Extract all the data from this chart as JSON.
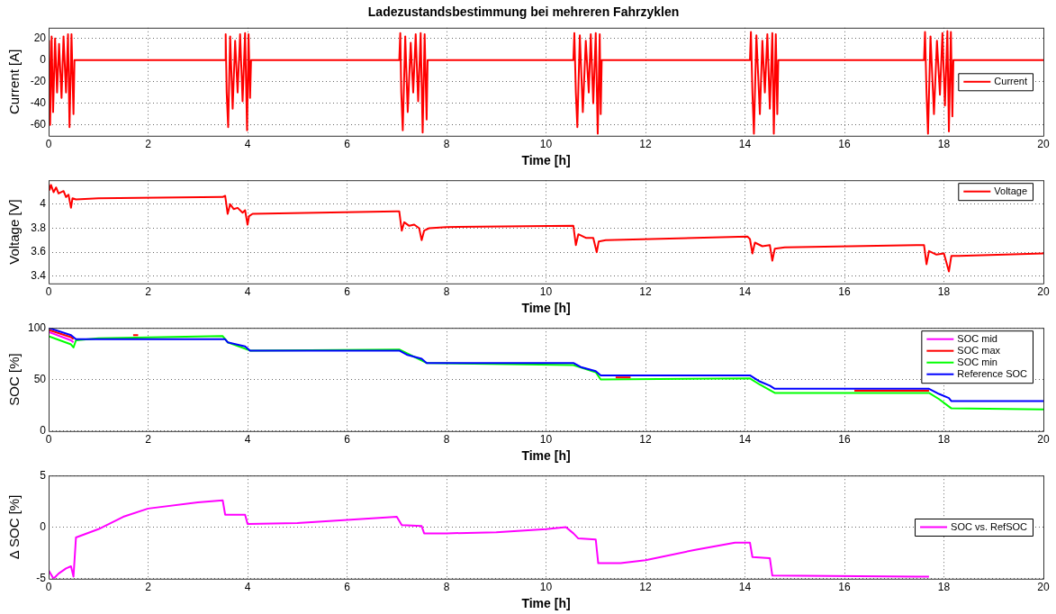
{
  "chart_data": [
    {
      "type": "line",
      "title": "Ladezustandsbestimmung bei mehreren Fahrzyklen",
      "xlabel": "Time [h]",
      "ylabel": "Current [A]",
      "xlim": [
        0,
        20
      ],
      "xticks": [
        0,
        2,
        4,
        6,
        8,
        10,
        12,
        14,
        16,
        18,
        20
      ],
      "ylim": [
        -70,
        30
      ],
      "yticks": [
        -60,
        -40,
        -20,
        0,
        20
      ],
      "grid": true,
      "legend": "right",
      "series": [
        {
          "name": "Current",
          "color": "#ff0000",
          "x": [
            0,
            0.01,
            0.03,
            0.06,
            0.09,
            0.13,
            0.17,
            0.21,
            0.26,
            0.3,
            0.35,
            0.39,
            0.42,
            0.46,
            0.5,
            0.52,
            3.55,
            3.56,
            3.58,
            3.61,
            3.65,
            3.7,
            3.75,
            3.8,
            3.85,
            3.9,
            3.95,
            3.99,
            4.02,
            4.05,
            4.07,
            7.05,
            7.07,
            7.09,
            7.12,
            7.17,
            7.22,
            7.28,
            7.33,
            7.38,
            7.43,
            7.48,
            7.52,
            7.56,
            7.6,
            7.62,
            10.55,
            10.57,
            10.6,
            10.63,
            10.68,
            10.74,
            10.8,
            10.86,
            10.9,
            10.95,
            11,
            11.04,
            11.08,
            11.1,
            11.12,
            14.1,
            14.12,
            14.15,
            14.18,
            14.23,
            14.3,
            14.35,
            14.4,
            14.45,
            14.5,
            14.55,
            14.58,
            14.62,
            14.65,
            14.67,
            17.6,
            17.62,
            17.65,
            17.68,
            17.73,
            17.8,
            17.86,
            17.92,
            17.97,
            18.02,
            18.07,
            18.1,
            18.14,
            18.17,
            18.19,
            20
          ],
          "values": [
            0,
            18,
            -60,
            22,
            -48,
            20,
            -30,
            15,
            -35,
            22,
            -30,
            24,
            -62,
            24,
            -50,
            0,
            0,
            24,
            -30,
            -62,
            22,
            -45,
            18,
            -30,
            24,
            -38,
            25,
            -65,
            24,
            -35,
            0,
            0,
            25,
            -30,
            -65,
            22,
            -48,
            16,
            -30,
            24,
            -38,
            25,
            -67,
            24,
            -55,
            0,
            0,
            25,
            -30,
            -62,
            23,
            -48,
            18,
            -30,
            24,
            -40,
            25,
            -68,
            24,
            -50,
            0,
            0,
            26,
            -30,
            -68,
            23,
            -50,
            18,
            -30,
            24,
            -45,
            25,
            -68,
            24,
            -50,
            0,
            0,
            26,
            -30,
            -68,
            22,
            -50,
            18,
            -32,
            25,
            -42,
            27,
            -66,
            26,
            -52,
            0,
            0
          ]
        }
      ]
    },
    {
      "type": "line",
      "xlabel": "Time [h]",
      "ylabel": "Voltage [V]",
      "xlim": [
        0,
        20
      ],
      "xticks": [
        0,
        2,
        4,
        6,
        8,
        10,
        12,
        14,
        16,
        18,
        20
      ],
      "ylim": [
        3.34,
        4.2
      ],
      "yticks": [
        3.4,
        3.6,
        3.8,
        4
      ],
      "grid": true,
      "legend": "top right",
      "series": [
        {
          "name": "Voltage",
          "color": "#ff0000",
          "x": [
            0,
            0.02,
            0.05,
            0.1,
            0.15,
            0.2,
            0.3,
            0.35,
            0.4,
            0.45,
            0.48,
            0.55,
            1,
            3.5,
            3.55,
            3.6,
            3.65,
            3.72,
            3.8,
            3.9,
            3.95,
            4,
            4.03,
            4.1,
            7,
            7.05,
            7.1,
            7.15,
            7.25,
            7.35,
            7.45,
            7.5,
            7.55,
            7.65,
            8,
            10.55,
            10.6,
            10.65,
            10.8,
            10.95,
            11.02,
            11.06,
            11.2,
            14.05,
            14.1,
            14.15,
            14.2,
            14.35,
            14.5,
            14.55,
            14.6,
            14.8,
            17.6,
            17.65,
            17.7,
            17.85,
            18,
            18.1,
            18.15,
            18.3,
            20
          ],
          "values": [
            4.18,
            4.12,
            4.16,
            4.1,
            4.14,
            4.09,
            4.11,
            4.06,
            4.08,
            3.97,
            4.05,
            4.04,
            4.05,
            4.06,
            4.07,
            3.92,
            4,
            3.96,
            3.97,
            3.93,
            3.95,
            3.83,
            3.9,
            3.92,
            3.94,
            3.94,
            3.78,
            3.85,
            3.82,
            3.83,
            3.8,
            3.7,
            3.78,
            3.8,
            3.81,
            3.82,
            3.66,
            3.75,
            3.72,
            3.72,
            3.6,
            3.69,
            3.7,
            3.73,
            3.71,
            3.59,
            3.68,
            3.65,
            3.66,
            3.53,
            3.63,
            3.64,
            3.66,
            3.5,
            3.61,
            3.58,
            3.59,
            3.44,
            3.57,
            3.57,
            3.59
          ]
        }
      ]
    },
    {
      "type": "line",
      "xlabel": "Time [h]",
      "ylabel": "SOC [%]",
      "xlim": [
        0,
        20
      ],
      "xticks": [
        0,
        2,
        4,
        6,
        8,
        10,
        12,
        14,
        16,
        18,
        20
      ],
      "ylim": [
        0,
        100
      ],
      "yticks": [
        0,
        50,
        100
      ],
      "grid": true,
      "legend": "top right",
      "series": [
        {
          "name": "SOC mid",
          "color": "#ff00ff",
          "x": [
            0,
            0.45,
            0.5
          ],
          "values": [
            96,
            88,
            86
          ]
        },
        {
          "name": "SOC max",
          "color": "#ff0000",
          "x": [
            0,
            0.45,
            0.5,
            0.51,
            1.7,
            1.8,
            1.81,
            11.4,
            11.7,
            11.71,
            16.2,
            17.7
          ],
          "values": [
            98,
            91,
            89,
            null,
            93,
            93,
            null,
            52,
            52,
            null,
            39,
            39
          ]
        },
        {
          "name": "SOC min",
          "color": "#00ff00",
          "x": [
            0,
            0.45,
            0.5,
            0.55,
            1,
            3.5,
            3.6,
            4.05,
            7.05,
            7.6,
            10.55,
            11,
            11.1,
            14.1,
            14.3,
            14.6,
            17.7,
            17.9,
            18.15,
            20
          ],
          "values": [
            92,
            84,
            81,
            88,
            90,
            92,
            86,
            78,
            79,
            66,
            64,
            57,
            50,
            51,
            45,
            37,
            37,
            31,
            22,
            21
          ]
        },
        {
          "name": "Reference SOC",
          "color": "#0000ff",
          "x": [
            0,
            0.45,
            0.55,
            3.55,
            3.6,
            3.95,
            4.05,
            7.05,
            7.2,
            7.5,
            7.6,
            10.55,
            10.7,
            11,
            11.1,
            14.1,
            14.3,
            14.5,
            14.6,
            17.7,
            17.9,
            18.1,
            18.15,
            20
          ],
          "values": [
            100,
            93,
            89,
            89,
            86,
            82,
            78,
            78,
            74,
            70,
            66,
            66,
            62,
            58,
            54,
            54,
            48,
            44,
            41,
            41,
            36,
            32,
            29,
            29
          ]
        }
      ]
    },
    {
      "type": "line",
      "xlabel": "Time [h]",
      "ylabel": "Δ SOC [%]",
      "xlim": [
        0,
        20
      ],
      "xticks": [
        0,
        2,
        4,
        6,
        8,
        10,
        12,
        14,
        16,
        18,
        20
      ],
      "ylim": [
        -5,
        5
      ],
      "yticks": [
        -5,
        0,
        5
      ],
      "grid": true,
      "legend": "right",
      "series": [
        {
          "name": "SOC vs. RefSOC",
          "color": "#ff00ff",
          "x": [
            0,
            0.1,
            0.2,
            0.35,
            0.45,
            0.5,
            0.55,
            1,
            1.5,
            2,
            3,
            3.5,
            3.55,
            3.95,
            4,
            5,
            6,
            7,
            7.1,
            7.5,
            7.55,
            8,
            9,
            10,
            10.4,
            10.55,
            10.65,
            11,
            11.05,
            11.5,
            12,
            13,
            13.8,
            14.1,
            14.15,
            14.5,
            14.55,
            17.7
          ],
          "values": [
            -4.2,
            -5,
            -4.5,
            -4,
            -3.8,
            -4.8,
            -1,
            -0.2,
            1,
            1.8,
            2.4,
            2.6,
            1.2,
            1.2,
            0.3,
            0.4,
            0.7,
            1,
            0.2,
            0.1,
            -0.6,
            -0.6,
            -0.5,
            -0.2,
            0,
            -0.6,
            -1.1,
            -1.2,
            -3.5,
            -3.5,
            -3.2,
            -2.2,
            -1.5,
            -1.5,
            -2.9,
            -3,
            -4.7,
            -4.8
          ]
        }
      ]
    }
  ]
}
